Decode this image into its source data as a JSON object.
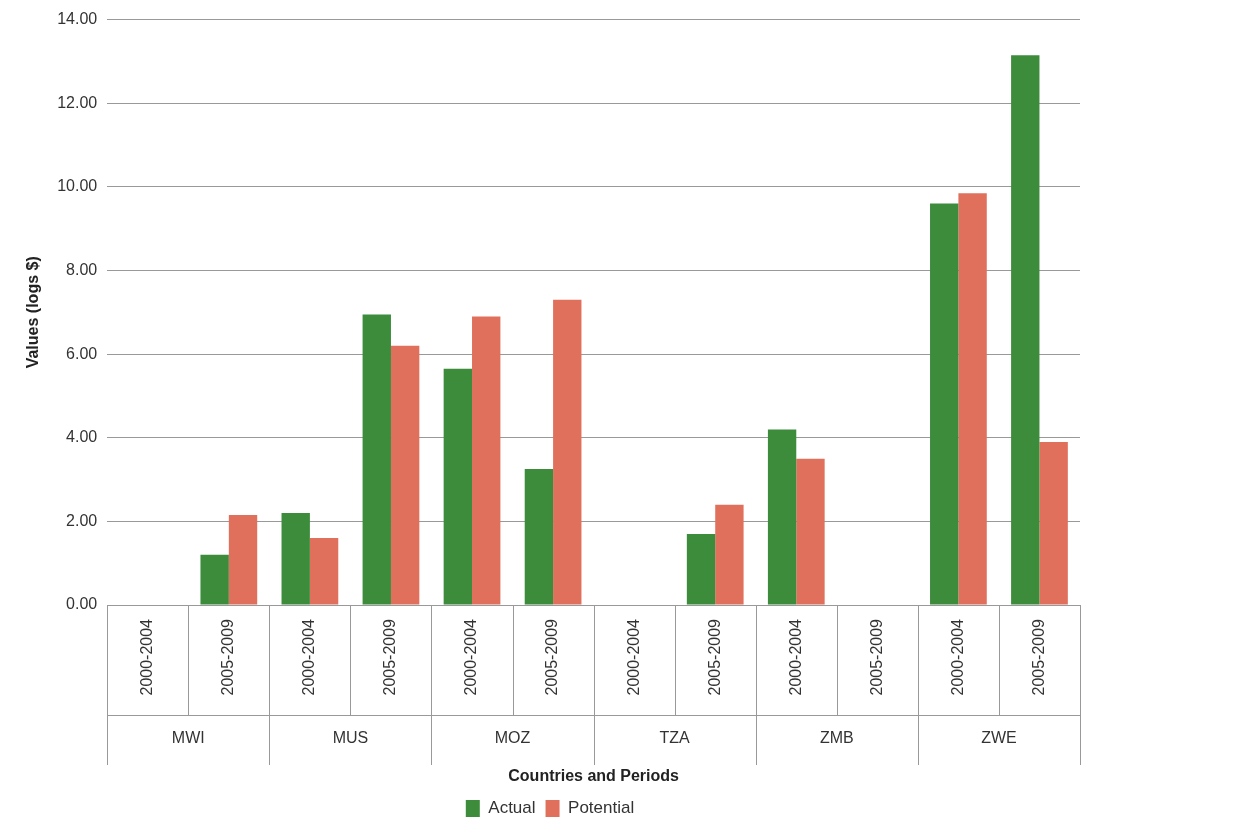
{
  "chart_data": {
    "type": "bar",
    "xlabel": "Countries and Periods",
    "ylabel": "Values (logs $)",
    "categories": [
      "2000-2004",
      "2005-2009",
      "2000-2004",
      "2005-2009",
      "2000-2004",
      "2005-2009",
      "2000-2004",
      "2005-2009",
      "2000-2004",
      "2005-2009",
      "2000-2004",
      "2005-2009"
    ],
    "annotations": [
      "MWI",
      "MUS",
      "MOZ",
      "TZA",
      "ZMB",
      "ZWE"
    ],
    "series": [
      {
        "name": "Actual",
        "color": "#3c8c3c",
        "values": [
          null,
          1.2,
          2.2,
          6.95,
          5.65,
          3.25,
          null,
          1.7,
          4.2,
          null,
          9.6,
          13.15
        ]
      },
      {
        "name": "Potential",
        "color": "#e0705c",
        "values": [
          null,
          2.15,
          1.6,
          6.2,
          6.9,
          7.3,
          null,
          2.4,
          3.5,
          null,
          9.85,
          3.9
        ]
      }
    ],
    "ylim": [
      0,
      14
    ],
    "yticks": [
      {
        "value": 0,
        "label": "0.00"
      },
      {
        "value": 2,
        "label": "2.00"
      },
      {
        "value": 4,
        "label": "4.00"
      },
      {
        "value": 6,
        "label": "6.00"
      },
      {
        "value": 8,
        "label": "8.00"
      },
      {
        "value": 10,
        "label": "10.00"
      },
      {
        "value": 12,
        "label": "12.00"
      },
      {
        "value": 14,
        "label": "14.00"
      }
    ],
    "grid": "y",
    "legend": "bottom"
  }
}
